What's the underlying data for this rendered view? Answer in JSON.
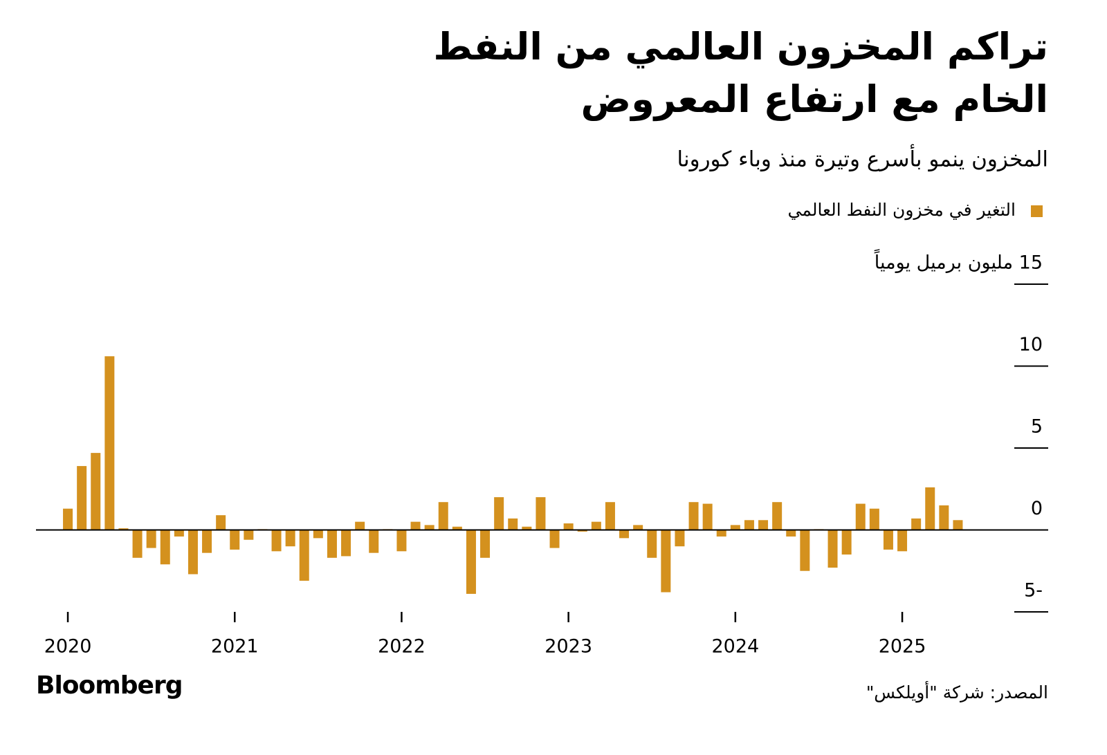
{
  "chart_data": {
    "type": "bar",
    "title": "تراكم المخزون العالمي من النفط الخام مع ارتفاع المعروض",
    "subtitle": "المخزون ينمو بأسرع وتيرة منذ وباء كورونا",
    "source": "المصدر: شركة \"أويلكس\"",
    "logo": "Bloomberg",
    "categories": [
      "2020",
      null,
      null,
      null,
      null,
      null,
      null,
      null,
      null,
      null,
      null,
      null,
      "2021",
      null,
      null,
      null,
      null,
      null,
      null,
      null,
      null,
      null,
      null,
      null,
      "2022",
      null,
      null,
      null,
      null,
      null,
      null,
      null,
      null,
      null,
      null,
      null,
      "2023",
      null,
      null,
      null,
      null,
      null,
      null,
      null,
      null,
      null,
      null,
      null,
      "2024",
      null,
      null,
      null,
      null,
      null,
      null,
      null,
      null,
      null,
      null,
      null,
      "2025",
      null,
      null,
      null,
      null
    ],
    "series": [
      {
        "name": "التغير في مخزون النفط العالمي",
        "color": "#d4911e",
        "values": [
          1.3,
          3.9,
          4.7,
          10.6,
          0.1,
          -1.7,
          -1.1,
          -2.1,
          -0.4,
          -2.7,
          -1.4,
          0.9,
          -1.2,
          -0.6,
          0.05,
          -1.3,
          -1.0,
          -3.1,
          -0.5,
          -1.7,
          -1.6,
          0.5,
          -1.4,
          0.05,
          -1.3,
          0.5,
          0.3,
          1.7,
          0.2,
          -3.9,
          -1.7,
          2.0,
          0.7,
          0.2,
          2.0,
          -1.1,
          0.4,
          -0.1,
          0.5,
          1.7,
          -0.5,
          0.3,
          -1.7,
          -3.8,
          -1.0,
          1.7,
          1.6,
          -0.4,
          0.3,
          0.6,
          0.6,
          1.7,
          -0.4,
          -2.5,
          0.05,
          -2.3,
          -1.5,
          1.6,
          1.3,
          -1.2,
          -1.3,
          0.7,
          2.6,
          1.5,
          0.6
        ]
      }
    ],
    "ylim": [
      -5,
      15
    ],
    "yticks": [
      -5,
      0,
      5,
      10,
      {
        "value": 15,
        "label": "15 مليون برميل يومياً"
      }
    ],
    "legend": "top-right"
  }
}
